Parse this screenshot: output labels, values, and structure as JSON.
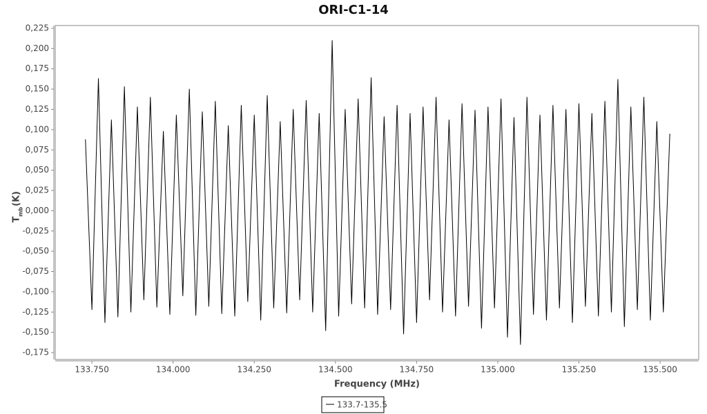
{
  "chart_data": {
    "type": "line",
    "title": "ORI-C1-14",
    "xlabel": "Frequency (MHz)",
    "ylabel": {
      "main": "T",
      "sub": "mb",
      "unit": "(K)"
    },
    "xlim": [
      133.637,
      135.619
    ],
    "ylim": [
      -0.1835,
      0.2284
    ],
    "xticks": [
      {
        "value": 133.75,
        "label": "133.750"
      },
      {
        "value": 134.0,
        "label": "134.000"
      },
      {
        "value": 134.25,
        "label": "134.250"
      },
      {
        "value": 134.5,
        "label": "134.500"
      },
      {
        "value": 134.75,
        "label": "134.750"
      },
      {
        "value": 135.0,
        "label": "135.000"
      },
      {
        "value": 135.25,
        "label": "135.250"
      },
      {
        "value": 135.5,
        "label": "135.500"
      }
    ],
    "yticks": [
      {
        "value": -0.175,
        "label": "-0,175"
      },
      {
        "value": -0.15,
        "label": "-0,150"
      },
      {
        "value": -0.125,
        "label": "-0,125"
      },
      {
        "value": -0.1,
        "label": "-0,100"
      },
      {
        "value": -0.075,
        "label": "-0,075"
      },
      {
        "value": -0.05,
        "label": "-0,050"
      },
      {
        "value": -0.025,
        "label": "-0,025"
      },
      {
        "value": 0,
        "label": "0,000"
      },
      {
        "value": 0.025,
        "label": "0,025"
      },
      {
        "value": 0.05,
        "label": "0,050"
      },
      {
        "value": 0.075,
        "label": "0,075"
      },
      {
        "value": 0.1,
        "label": "0,100"
      },
      {
        "value": 0.125,
        "label": "0,125"
      },
      {
        "value": 0.15,
        "label": "0,150"
      },
      {
        "value": 0.175,
        "label": "0,175"
      },
      {
        "value": 0.2,
        "label": "0,200"
      },
      {
        "value": 0.225,
        "label": "0,225"
      }
    ],
    "x": [
      133.73,
      133.75,
      133.77,
      133.79,
      133.81,
      133.83,
      133.85,
      133.87,
      133.89,
      133.91,
      133.93,
      133.95,
      133.97,
      133.99,
      134.01,
      134.03,
      134.05,
      134.07,
      134.09,
      134.11,
      134.13,
      134.15,
      134.17,
      134.19,
      134.21,
      134.23,
      134.25,
      134.27,
      134.29,
      134.31,
      134.33,
      134.35,
      134.37,
      134.39,
      134.41,
      134.43,
      134.45,
      134.47,
      134.49,
      134.51,
      134.53,
      134.55,
      134.57,
      134.59,
      134.61,
      134.63,
      134.65,
      134.67,
      134.69,
      134.71,
      134.73,
      134.75,
      134.77,
      134.79,
      134.81,
      134.83,
      134.85,
      134.87,
      134.89,
      134.91,
      134.93,
      134.95,
      134.97,
      134.99,
      135.01,
      135.03,
      135.05,
      135.07,
      135.09,
      135.11,
      135.13,
      135.15,
      135.17,
      135.19,
      135.21,
      135.23,
      135.25,
      135.27,
      135.29,
      135.31,
      135.33,
      135.35,
      135.37,
      135.39,
      135.41,
      135.43,
      135.45,
      135.47,
      135.49,
      135.51,
      135.53
    ],
    "series": [
      {
        "name": "133.7-135.5",
        "color": "#000000",
        "values": [
          0.088,
          -0.122,
          0.163,
          -0.138,
          0.112,
          -0.131,
          0.153,
          -0.125,
          0.128,
          -0.11,
          0.14,
          -0.119,
          0.098,
          -0.128,
          0.118,
          -0.105,
          0.15,
          -0.129,
          0.122,
          -0.118,
          0.135,
          -0.127,
          0.105,
          -0.13,
          0.13,
          -0.112,
          0.118,
          -0.135,
          0.142,
          -0.12,
          0.11,
          -0.126,
          0.125,
          -0.11,
          0.136,
          -0.125,
          0.12,
          -0.148,
          0.21,
          -0.13,
          0.125,
          -0.115,
          0.138,
          -0.12,
          0.164,
          -0.128,
          0.116,
          -0.122,
          0.13,
          -0.152,
          0.12,
          -0.138,
          0.128,
          -0.11,
          0.14,
          -0.125,
          0.112,
          -0.13,
          0.132,
          -0.118,
          0.124,
          -0.145,
          0.128,
          -0.12,
          0.138,
          -0.156,
          0.115,
          -0.165,
          0.14,
          -0.128,
          0.118,
          -0.135,
          0.13,
          -0.12,
          0.125,
          -0.138,
          0.132,
          -0.118,
          0.12,
          -0.13,
          0.135,
          -0.125,
          0.162,
          -0.143,
          0.128,
          -0.122,
          0.14,
          -0.135,
          0.11,
          -0.125,
          0.095
        ]
      }
    ]
  }
}
